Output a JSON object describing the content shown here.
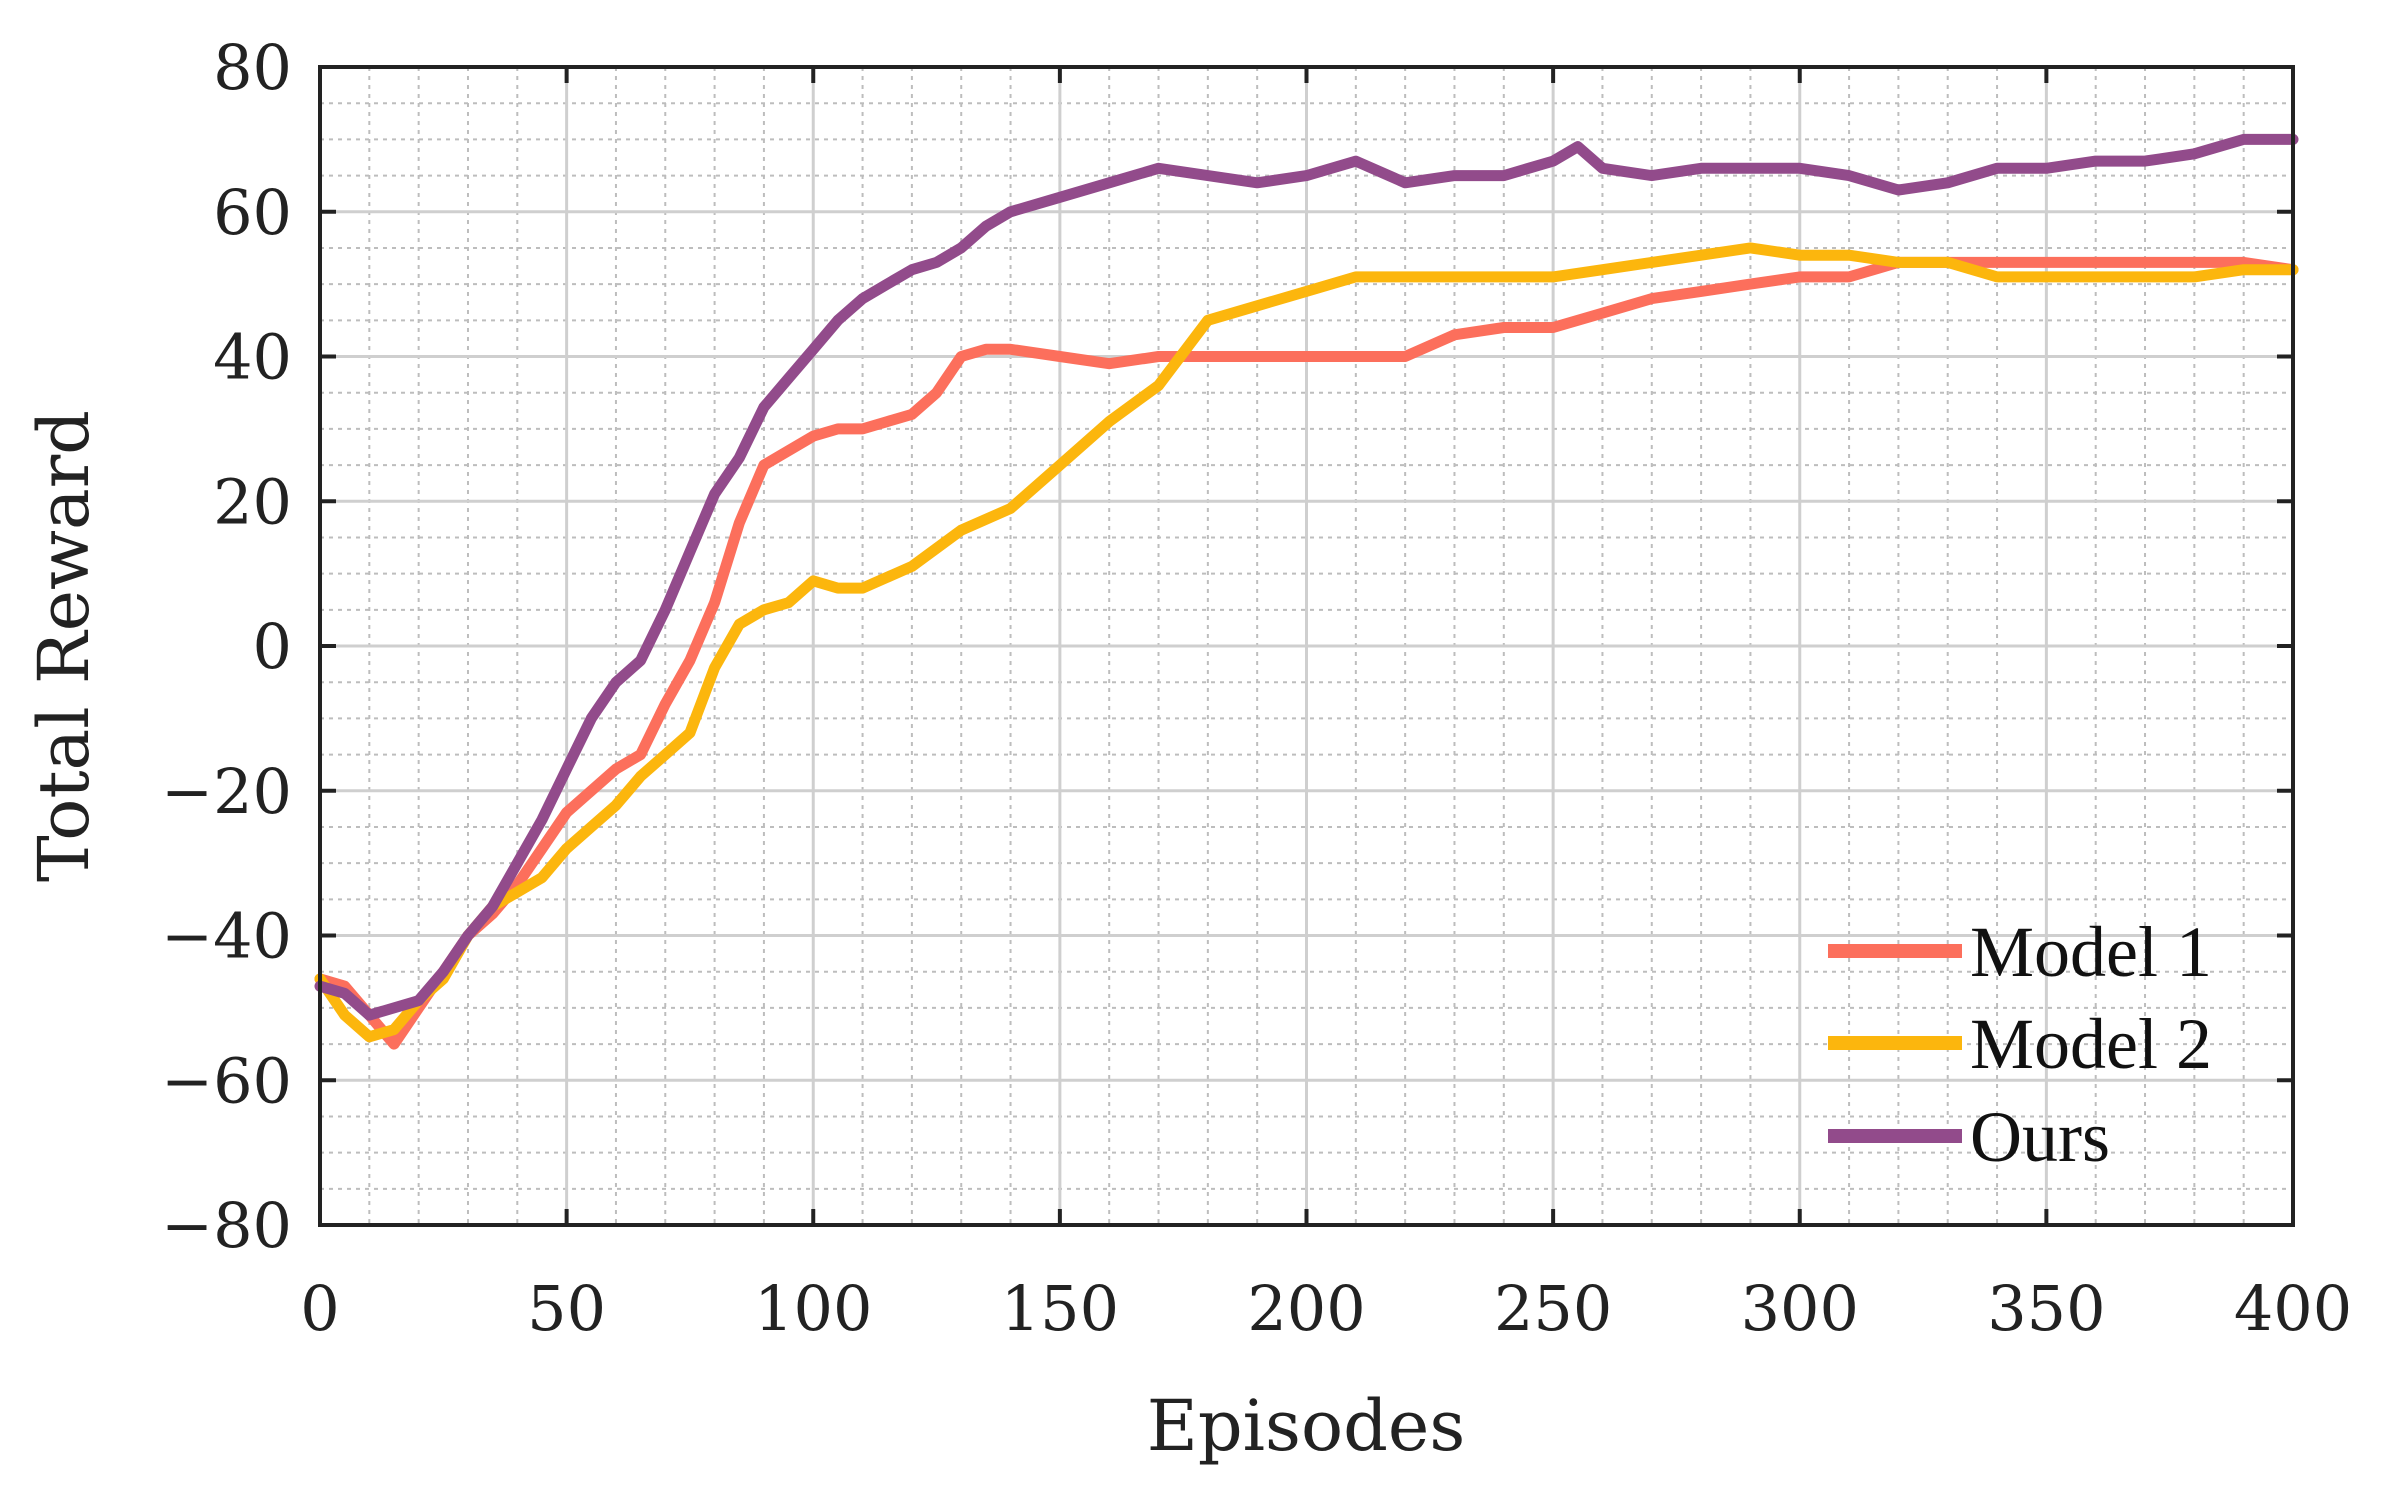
{
  "chart_data": {
    "type": "line",
    "title": "",
    "xlabel": "Episodes",
    "ylabel": "Total Reward",
    "xlim": [
      0,
      400
    ],
    "ylim": [
      -80,
      80
    ],
    "xticks": [
      0,
      50,
      100,
      150,
      200,
      250,
      300,
      350,
      400
    ],
    "yticks": [
      -80,
      -60,
      -40,
      -20,
      0,
      20,
      40,
      60,
      80
    ],
    "xtick_labels": [
      "0",
      "50",
      "100",
      "150",
      "200",
      "250",
      "300",
      "350",
      "400"
    ],
    "ytick_labels": [
      "−80",
      "−60",
      "−40",
      "−20",
      "0",
      "20",
      "40",
      "60",
      "80"
    ],
    "grid": true,
    "minor_grid": true,
    "legend_position": "bottom-right",
    "series": [
      {
        "name": "Model 1",
        "color": "#fc6f5c",
        "points": [
          [
            0,
            -46
          ],
          [
            5,
            -47
          ],
          [
            10,
            -51
          ],
          [
            15,
            -55
          ],
          [
            20,
            -50
          ],
          [
            25,
            -45
          ],
          [
            30,
            -40
          ],
          [
            35,
            -37
          ],
          [
            40,
            -33
          ],
          [
            45,
            -28
          ],
          [
            50,
            -23
          ],
          [
            55,
            -20
          ],
          [
            60,
            -17
          ],
          [
            65,
            -15
          ],
          [
            70,
            -8
          ],
          [
            75,
            -2
          ],
          [
            80,
            6
          ],
          [
            85,
            17
          ],
          [
            90,
            25
          ],
          [
            95,
            27
          ],
          [
            100,
            29
          ],
          [
            105,
            30
          ],
          [
            110,
            30
          ],
          [
            115,
            31
          ],
          [
            120,
            32
          ],
          [
            125,
            35
          ],
          [
            130,
            40
          ],
          [
            135,
            41
          ],
          [
            140,
            41
          ],
          [
            150,
            40
          ],
          [
            160,
            39
          ],
          [
            170,
            40
          ],
          [
            180,
            40
          ],
          [
            190,
            40
          ],
          [
            200,
            40
          ],
          [
            210,
            40
          ],
          [
            220,
            40
          ],
          [
            230,
            43
          ],
          [
            240,
            44
          ],
          [
            250,
            44
          ],
          [
            260,
            46
          ],
          [
            270,
            48
          ],
          [
            280,
            49
          ],
          [
            290,
            50
          ],
          [
            300,
            51
          ],
          [
            310,
            51
          ],
          [
            320,
            53
          ],
          [
            330,
            53
          ],
          [
            340,
            53
          ],
          [
            350,
            53
          ],
          [
            360,
            53
          ],
          [
            370,
            53
          ],
          [
            380,
            53
          ],
          [
            390,
            53
          ],
          [
            400,
            52
          ]
        ]
      },
      {
        "name": "Model 2",
        "color": "#fcb60d",
        "points": [
          [
            0,
            -46
          ],
          [
            5,
            -51
          ],
          [
            10,
            -54
          ],
          [
            15,
            -53
          ],
          [
            20,
            -49
          ],
          [
            25,
            -46
          ],
          [
            30,
            -40
          ],
          [
            35,
            -36
          ],
          [
            40,
            -34
          ],
          [
            45,
            -32
          ],
          [
            50,
            -28
          ],
          [
            55,
            -25
          ],
          [
            60,
            -22
          ],
          [
            65,
            -18
          ],
          [
            70,
            -15
          ],
          [
            75,
            -12
          ],
          [
            80,
            -3
          ],
          [
            85,
            3
          ],
          [
            90,
            5
          ],
          [
            95,
            6
          ],
          [
            100,
            9
          ],
          [
            105,
            8
          ],
          [
            110,
            8
          ],
          [
            120,
            11
          ],
          [
            130,
            16
          ],
          [
            140,
            19
          ],
          [
            150,
            25
          ],
          [
            160,
            31
          ],
          [
            170,
            36
          ],
          [
            180,
            45
          ],
          [
            190,
            47
          ],
          [
            200,
            49
          ],
          [
            210,
            51
          ],
          [
            220,
            51
          ],
          [
            230,
            51
          ],
          [
            240,
            51
          ],
          [
            250,
            51
          ],
          [
            260,
            52
          ],
          [
            270,
            53
          ],
          [
            280,
            54
          ],
          [
            290,
            55
          ],
          [
            300,
            54
          ],
          [
            310,
            54
          ],
          [
            320,
            53
          ],
          [
            330,
            53
          ],
          [
            340,
            51
          ],
          [
            350,
            51
          ],
          [
            360,
            51
          ],
          [
            370,
            51
          ],
          [
            380,
            51
          ],
          [
            390,
            52
          ],
          [
            400,
            52
          ]
        ]
      },
      {
        "name": "Ours",
        "color": "#924b8b",
        "points": [
          [
            0,
            -47
          ],
          [
            5,
            -48
          ],
          [
            10,
            -51
          ],
          [
            15,
            -50
          ],
          [
            20,
            -49
          ],
          [
            25,
            -45
          ],
          [
            30,
            -40
          ],
          [
            35,
            -36
          ],
          [
            40,
            -30
          ],
          [
            45,
            -24
          ],
          [
            50,
            -17
          ],
          [
            55,
            -10
          ],
          [
            60,
            -5
          ],
          [
            65,
            -2
          ],
          [
            70,
            5
          ],
          [
            75,
            13
          ],
          [
            80,
            21
          ],
          [
            85,
            26
          ],
          [
            90,
            33
          ],
          [
            95,
            37
          ],
          [
            100,
            41
          ],
          [
            105,
            45
          ],
          [
            110,
            48
          ],
          [
            115,
            50
          ],
          [
            120,
            52
          ],
          [
            125,
            53
          ],
          [
            130,
            55
          ],
          [
            135,
            58
          ],
          [
            140,
            60
          ],
          [
            150,
            62
          ],
          [
            160,
            64
          ],
          [
            170,
            66
          ],
          [
            180,
            65
          ],
          [
            190,
            64
          ],
          [
            200,
            65
          ],
          [
            210,
            67
          ],
          [
            220,
            64
          ],
          [
            230,
            65
          ],
          [
            240,
            65
          ],
          [
            250,
            67
          ],
          [
            255,
            69
          ],
          [
            260,
            66
          ],
          [
            270,
            65
          ],
          [
            280,
            66
          ],
          [
            290,
            66
          ],
          [
            300,
            66
          ],
          [
            310,
            65
          ],
          [
            320,
            63
          ],
          [
            330,
            64
          ],
          [
            340,
            66
          ],
          [
            350,
            66
          ],
          [
            360,
            67
          ],
          [
            370,
            67
          ],
          [
            380,
            68
          ],
          [
            390,
            70
          ],
          [
            400,
            70
          ]
        ]
      }
    ]
  }
}
